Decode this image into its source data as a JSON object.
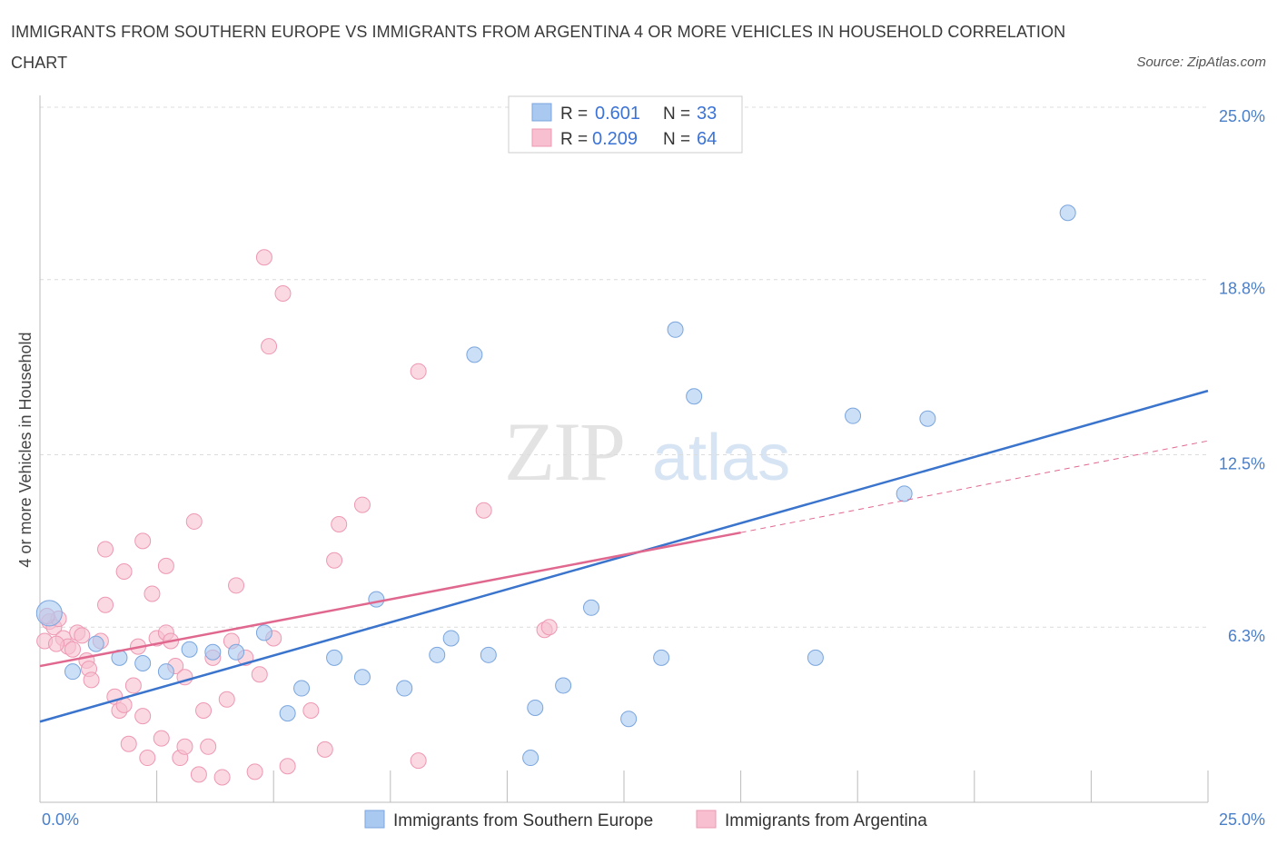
{
  "title": "IMMIGRANTS FROM SOUTHERN EUROPE VS IMMIGRANTS FROM ARGENTINA 4 OR MORE VEHICLES IN HOUSEHOLD CORRELATION CHART",
  "source": "Source: ZipAtlas.com",
  "watermark": {
    "zip": "ZIP",
    "atlas": "atlas"
  },
  "legend": {
    "r_label": "R =",
    "n_label": "N =",
    "rows": [
      {
        "r": "0.601",
        "n": "33"
      },
      {
        "r": "0.209",
        "n": "64"
      }
    ]
  },
  "chart_data": {
    "type": "scatter",
    "title": "IMMIGRANTS FROM SOUTHERN EUROPE VS IMMIGRANTS FROM ARGENTINA 4 OR MORE VEHICLES IN HOUSEHOLD CORRELATION CHART",
    "xlabel": "",
    "ylabel": "4 or more Vehicles in Household",
    "xlim": [
      0,
      25
    ],
    "ylim": [
      0,
      25
    ],
    "x_tick_labels": [
      "0.0%",
      "25.0%"
    ],
    "y_tick_values": [
      6.3,
      12.5,
      18.8,
      25.0
    ],
    "y_tick_labels": [
      "6.3%",
      "12.5%",
      "18.8%",
      "25.0%"
    ],
    "grid": true,
    "legend_position": "top-center",
    "colors": {
      "southern_europe_fill": "#a9c9f0",
      "southern_europe_stroke": "#7aa5de",
      "southern_europe_line": "#3a74cc",
      "argentina_fill": "#f7bfd0",
      "argentina_stroke": "#ee98b3",
      "argentina_line": "#e0688f"
    },
    "series": [
      {
        "name": "Immigrants from Southern Europe",
        "r": 0.601,
        "n": 33,
        "trend": {
          "x0": 0,
          "y0": 2.9,
          "x1": 25,
          "y1": 14.8
        },
        "points": [
          [
            0.2,
            6.8
          ],
          [
            0.7,
            4.7
          ],
          [
            1.2,
            5.7
          ],
          [
            1.7,
            5.2
          ],
          [
            2.2,
            5.0
          ],
          [
            2.7,
            4.7
          ],
          [
            3.2,
            5.5
          ],
          [
            3.7,
            5.4
          ],
          [
            4.2,
            5.4
          ],
          [
            4.8,
            6.1
          ],
          [
            5.3,
            3.2
          ],
          [
            5.6,
            4.1
          ],
          [
            6.3,
            5.2
          ],
          [
            6.9,
            4.5
          ],
          [
            7.2,
            7.3
          ],
          [
            7.8,
            4.1
          ],
          [
            8.5,
            5.3
          ],
          [
            8.8,
            5.9
          ],
          [
            9.3,
            16.1
          ],
          [
            9.6,
            5.3
          ],
          [
            10.6,
            3.4
          ],
          [
            10.5,
            1.6
          ],
          [
            11.2,
            4.2
          ],
          [
            11.8,
            7.0
          ],
          [
            12.6,
            3.0
          ],
          [
            13.3,
            5.2
          ],
          [
            13.6,
            17.0
          ],
          [
            14.0,
            14.6
          ],
          [
            16.6,
            5.2
          ],
          [
            17.4,
            13.9
          ],
          [
            18.5,
            11.1
          ],
          [
            19.0,
            13.8
          ],
          [
            22.0,
            21.2
          ]
        ]
      },
      {
        "name": "Immigrants from Argentina",
        "r": 0.209,
        "n": 64,
        "trend": {
          "x0": 0,
          "y0": 4.9,
          "x1": 15.0,
          "y1": 9.7
        },
        "trend_dashed": {
          "x0": 15.0,
          "y0": 9.7,
          "x1": 25,
          "y1": 13.0
        },
        "points": [
          [
            0.1,
            5.8
          ],
          [
            0.2,
            6.5
          ],
          [
            0.3,
            6.3
          ],
          [
            0.4,
            6.6
          ],
          [
            0.5,
            5.9
          ],
          [
            0.6,
            5.6
          ],
          [
            0.7,
            5.5
          ],
          [
            0.8,
            6.1
          ],
          [
            0.9,
            6.0
          ],
          [
            1.0,
            5.1
          ],
          [
            1.05,
            4.8
          ],
          [
            1.1,
            4.4
          ],
          [
            1.3,
            5.8
          ],
          [
            1.4,
            7.1
          ],
          [
            1.4,
            9.1
          ],
          [
            1.6,
            3.8
          ],
          [
            1.7,
            3.3
          ],
          [
            1.8,
            3.5
          ],
          [
            1.8,
            8.3
          ],
          [
            1.9,
            2.1
          ],
          [
            2.0,
            4.2
          ],
          [
            2.1,
            5.6
          ],
          [
            2.2,
            9.4
          ],
          [
            2.2,
            3.1
          ],
          [
            2.3,
            1.6
          ],
          [
            2.4,
            7.5
          ],
          [
            2.5,
            5.9
          ],
          [
            2.6,
            2.3
          ],
          [
            2.7,
            8.5
          ],
          [
            2.7,
            6.1
          ],
          [
            2.8,
            5.8
          ],
          [
            2.9,
            4.9
          ],
          [
            3.0,
            1.6
          ],
          [
            3.1,
            4.5
          ],
          [
            3.1,
            2.0
          ],
          [
            3.3,
            10.1
          ],
          [
            3.4,
            1.0
          ],
          [
            3.5,
            3.3
          ],
          [
            3.6,
            2.0
          ],
          [
            3.7,
            5.2
          ],
          [
            3.9,
            0.9
          ],
          [
            4.0,
            3.7
          ],
          [
            4.1,
            5.8
          ],
          [
            4.2,
            7.8
          ],
          [
            4.4,
            5.2
          ],
          [
            4.6,
            1.1
          ],
          [
            4.7,
            4.6
          ],
          [
            4.8,
            19.6
          ],
          [
            4.9,
            16.4
          ],
          [
            5.0,
            5.9
          ],
          [
            5.2,
            18.3
          ],
          [
            5.3,
            1.3
          ],
          [
            5.8,
            3.3
          ],
          [
            6.1,
            1.9
          ],
          [
            6.3,
            8.7
          ],
          [
            6.4,
            10.0
          ],
          [
            6.9,
            10.7
          ],
          [
            8.1,
            15.5
          ],
          [
            8.1,
            1.5
          ],
          [
            9.5,
            10.5
          ],
          [
            10.8,
            6.2
          ],
          [
            10.9,
            6.3
          ],
          [
            0.15,
            6.7
          ],
          [
            0.35,
            5.7
          ]
        ]
      }
    ]
  },
  "bottom_legend": [
    {
      "label": "Immigrants from Southern Europe"
    },
    {
      "label": "Immigrants from Argentina"
    }
  ]
}
